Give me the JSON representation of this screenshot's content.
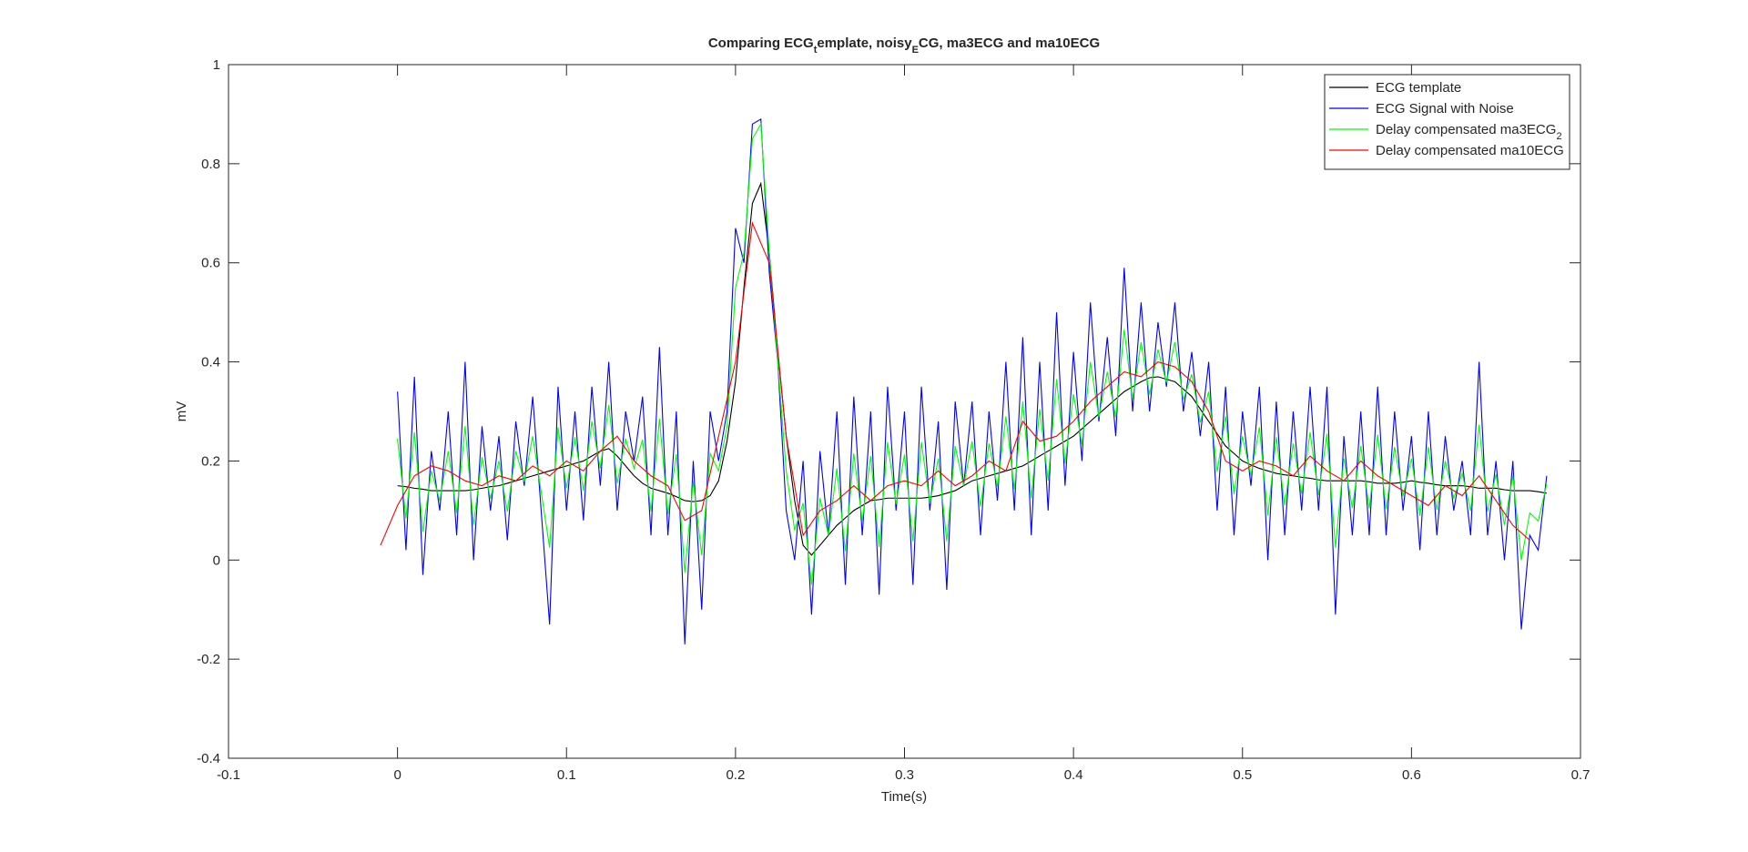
{
  "chart_data": {
    "type": "line",
    "title": [
      "Comparing ECG",
      "t",
      "emplate, noisy",
      "E",
      "CG, ma3ECG and ma10ECG"
    ],
    "xlabel": "Time(s)",
    "ylabel": "mV",
    "xlim": [
      -0.1,
      0.7
    ],
    "xticks": [
      -0.1,
      0,
      0.1,
      0.2,
      0.3,
      0.4,
      0.5,
      0.6,
      0.7
    ],
    "ylim": [
      -0.4,
      1
    ],
    "yticks": [
      -0.4,
      -0.2,
      0,
      0.2,
      0.4,
      0.6,
      0.8,
      1
    ],
    "legend": "upper-right",
    "x": [
      0,
      0.005,
      0.01,
      0.015,
      0.02,
      0.025,
      0.03,
      0.035,
      0.04,
      0.045,
      0.05,
      0.055,
      0.06,
      0.065,
      0.07,
      0.075,
      0.08,
      0.085,
      0.09,
      0.095,
      0.1,
      0.105,
      0.11,
      0.115,
      0.12,
      0.125,
      0.13,
      0.135,
      0.14,
      0.145,
      0.15,
      0.155,
      0.16,
      0.165,
      0.17,
      0.175,
      0.18,
      0.185,
      0.19,
      0.195,
      0.2,
      0.205,
      0.21,
      0.215,
      0.22,
      0.225,
      0.23,
      0.235,
      0.24,
      0.245,
      0.25,
      0.255,
      0.26,
      0.265,
      0.27,
      0.275,
      0.28,
      0.285,
      0.29,
      0.295,
      0.3,
      0.305,
      0.31,
      0.315,
      0.32,
      0.325,
      0.33,
      0.335,
      0.34,
      0.345,
      0.35,
      0.355,
      0.36,
      0.365,
      0.37,
      0.375,
      0.38,
      0.385,
      0.39,
      0.395,
      0.4,
      0.405,
      0.41,
      0.415,
      0.42,
      0.425,
      0.43,
      0.435,
      0.44,
      0.445,
      0.45,
      0.455,
      0.46,
      0.465,
      0.47,
      0.475,
      0.48,
      0.485,
      0.49,
      0.495,
      0.5,
      0.505,
      0.51,
      0.515,
      0.52,
      0.525,
      0.53,
      0.535,
      0.54,
      0.545,
      0.55,
      0.555,
      0.56,
      0.565,
      0.57,
      0.575,
      0.58,
      0.585,
      0.59,
      0.595,
      0.6,
      0.605,
      0.61,
      0.615,
      0.62,
      0.625,
      0.63,
      0.635,
      0.64,
      0.645,
      0.65,
      0.655,
      0.66,
      0.665,
      0.67,
      0.675,
      0.68
    ],
    "series": [
      {
        "name": "ECG template",
        "color": "#000000",
        "values": [
          0.15,
          0.148,
          0.145,
          0.143,
          0.14,
          0.14,
          0.14,
          0.14,
          0.14,
          0.142,
          0.145,
          0.148,
          0.15,
          0.155,
          0.16,
          0.165,
          0.17,
          0.175,
          0.18,
          0.185,
          0.19,
          0.195,
          0.2,
          0.21,
          0.22,
          0.225,
          0.21,
          0.19,
          0.17,
          0.155,
          0.145,
          0.14,
          0.135,
          0.128,
          0.12,
          0.118,
          0.12,
          0.13,
          0.16,
          0.24,
          0.36,
          0.55,
          0.72,
          0.76,
          0.62,
          0.42,
          0.25,
          0.12,
          0.03,
          0.01,
          0.03,
          0.05,
          0.07,
          0.085,
          0.1,
          0.11,
          0.12,
          0.122,
          0.125,
          0.125,
          0.125,
          0.125,
          0.125,
          0.127,
          0.13,
          0.135,
          0.14,
          0.15,
          0.16,
          0.165,
          0.17,
          0.175,
          0.18,
          0.185,
          0.19,
          0.2,
          0.21,
          0.22,
          0.23,
          0.24,
          0.25,
          0.265,
          0.28,
          0.295,
          0.31,
          0.325,
          0.34,
          0.35,
          0.36,
          0.368,
          0.37,
          0.365,
          0.36,
          0.345,
          0.33,
          0.305,
          0.28,
          0.255,
          0.23,
          0.215,
          0.2,
          0.192,
          0.185,
          0.18,
          0.175,
          0.172,
          0.17,
          0.167,
          0.165,
          0.162,
          0.16,
          0.16,
          0.16,
          0.16,
          0.16,
          0.158,
          0.155,
          0.155,
          0.155,
          0.157,
          0.16,
          0.157,
          0.155,
          0.152,
          0.15,
          0.15,
          0.15,
          0.148,
          0.145,
          0.145,
          0.145,
          0.142,
          0.14,
          0.14,
          0.14,
          0.138,
          0.135
        ]
      },
      {
        "name": "ECG Signal with Noise",
        "color": "#0000ff",
        "values": [
          0.34,
          0.02,
          0.37,
          -0.03,
          0.22,
          0.1,
          0.3,
          0.05,
          0.4,
          0,
          0.27,
          0.1,
          0.25,
          0.04,
          0.28,
          0.15,
          0.33,
          0.1,
          -0.13,
          0.35,
          0.1,
          0.3,
          0.08,
          0.35,
          0.15,
          0.4,
          0.1,
          0.3,
          0.2,
          0.33,
          0.05,
          0.43,
          0.05,
          0.3,
          -0.17,
          0.2,
          -0.1,
          0.3,
          0.2,
          0.3,
          0.67,
          0.6,
          0.88,
          0.89,
          0.58,
          0.4,
          0.1,
          0,
          0.2,
          -0.11,
          0.22,
          0.05,
          0.3,
          -0.05,
          0.33,
          0.05,
          0.3,
          -0.07,
          0.35,
          0.1,
          0.3,
          -0.05,
          0.35,
          0.1,
          0.28,
          -0.06,
          0.32,
          0.15,
          0.32,
          0.05,
          0.3,
          0.12,
          0.4,
          0.1,
          0.45,
          0.05,
          0.4,
          0.1,
          0.5,
          0.15,
          0.42,
          0.2,
          0.52,
          0.28,
          0.45,
          0.25,
          0.59,
          0.3,
          0.52,
          0.3,
          0.48,
          0.35,
          0.52,
          0.3,
          0.42,
          0.25,
          0.4,
          0.1,
          0.35,
          0.05,
          0.3,
          0.15,
          0.35,
          0,
          0.32,
          0.05,
          0.3,
          0.1,
          0.35,
          0.1,
          0.35,
          -0.11,
          0.25,
          0.05,
          0.3,
          0.05,
          0.35,
          0.05,
          0.3,
          0.1,
          0.25,
          0.02,
          0.3,
          0.05,
          0.25,
          0.1,
          0.2,
          0.05,
          0.4,
          0.05,
          0.2,
          0,
          0.2,
          -0.14,
          0.05,
          0.02,
          0.17
        ]
      },
      {
        "name": [
          "Delay compensated ma3ECG",
          "2"
        ],
        "color": "#00ff00",
        "values": [
          0.245,
          0.084,
          0.258,
          0.057,
          0.18,
          0.12,
          0.22,
          0.095,
          0.27,
          0.071,
          0.208,
          0.124,
          0.2,
          0.098,
          0.22,
          0.158,
          0.25,
          0.138,
          0.025,
          0.268,
          0.145,
          0.248,
          0.14,
          0.28,
          0.185,
          0.313,
          0.155,
          0.245,
          0.185,
          0.243,
          0.098,
          0.285,
          0.093,
          0.214,
          -0.025,
          0.159,
          0.01,
          0.215,
          0.18,
          0.27,
          0.55,
          0.62,
          0.85,
          0.88,
          0.62,
          0.4,
          0.18,
          0.06,
          0.115,
          -0.05,
          0.125,
          0.05,
          0.185,
          0.018,
          0.215,
          0.08,
          0.21,
          0.026,
          0.238,
          0.113,
          0.213,
          0.038,
          0.238,
          0.114,
          0.205,
          0.038,
          0.23,
          0.15,
          0.24,
          0.108,
          0.235,
          0.148,
          0.29,
          0.143,
          0.32,
          0.125,
          0.305,
          0.16,
          0.365,
          0.195,
          0.335,
          0.233,
          0.4,
          0.288,
          0.38,
          0.288,
          0.465,
          0.325,
          0.44,
          0.334,
          0.425,
          0.358,
          0.44,
          0.323,
          0.375,
          0.278,
          0.34,
          0.178,
          0.29,
          0.133,
          0.25,
          0.171,
          0.268,
          0.09,
          0.248,
          0.111,
          0.235,
          0.134,
          0.258,
          0.131,
          0.255,
          0.025,
          0.205,
          0.105,
          0.23,
          0.104,
          0.253,
          0.103,
          0.228,
          0.129,
          0.205,
          0.089,
          0.228,
          0.101,
          0.2,
          0.125,
          0.175,
          0.099,
          0.273,
          0.098,
          0.173,
          0.071,
          0.17,
          0,
          0.095,
          0.079,
          0.153
        ]
      },
      {
        "name": "Delay compensated ma10ECG",
        "color": "#ff0000",
        "x": [
          -0.01,
          0,
          0.01,
          0.02,
          0.03,
          0.04,
          0.05,
          0.06,
          0.07,
          0.08,
          0.09,
          0.1,
          0.11,
          0.12,
          0.13,
          0.14,
          0.15,
          0.16,
          0.17,
          0.18,
          0.19,
          0.2,
          0.21,
          0.22,
          0.23,
          0.24,
          0.25,
          0.26,
          0.27,
          0.28,
          0.29,
          0.3,
          0.31,
          0.32,
          0.33,
          0.34,
          0.35,
          0.36,
          0.37,
          0.38,
          0.39,
          0.4,
          0.41,
          0.42,
          0.43,
          0.44,
          0.45,
          0.46,
          0.47,
          0.48,
          0.49,
          0.5,
          0.51,
          0.52,
          0.53,
          0.54,
          0.55,
          0.56,
          0.57,
          0.58,
          0.59,
          0.6,
          0.61,
          0.62,
          0.63,
          0.64,
          0.65,
          0.66,
          0.67
        ],
        "values": [
          0.03,
          0.11,
          0.17,
          0.19,
          0.18,
          0.16,
          0.15,
          0.17,
          0.16,
          0.19,
          0.17,
          0.2,
          0.18,
          0.22,
          0.25,
          0.2,
          0.17,
          0.15,
          0.08,
          0.1,
          0.25,
          0.4,
          0.68,
          0.6,
          0.25,
          0.05,
          0.1,
          0.12,
          0.15,
          0.12,
          0.15,
          0.16,
          0.15,
          0.18,
          0.15,
          0.17,
          0.2,
          0.18,
          0.28,
          0.24,
          0.25,
          0.28,
          0.32,
          0.35,
          0.38,
          0.37,
          0.4,
          0.39,
          0.36,
          0.3,
          0.2,
          0.18,
          0.2,
          0.19,
          0.17,
          0.21,
          0.18,
          0.16,
          0.2,
          0.17,
          0.15,
          0.13,
          0.11,
          0.15,
          0.13,
          0.17,
          0.12,
          0.07,
          0.04
        ]
      }
    ]
  }
}
